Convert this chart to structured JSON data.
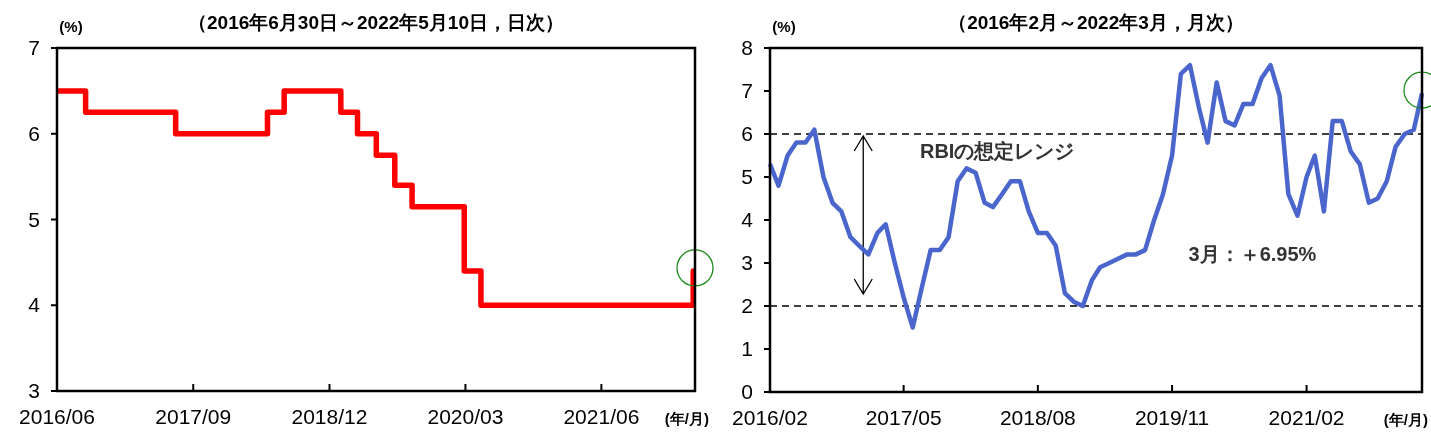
{
  "chart_data": [
    {
      "type": "step",
      "title": "（2016年6月30日～2022年5月10日，日次）",
      "ylabel": "(%)",
      "xlabel": "(年/月)",
      "xlim": [
        "2016-06-30",
        "2022-05-10"
      ],
      "ylim": [
        3,
        7
      ],
      "yticks": [
        3,
        4,
        5,
        6,
        7
      ],
      "xticks": [
        {
          "value": "2016-06-30",
          "label": "2016/06"
        },
        {
          "value": "2017-09-30",
          "label": "2017/09"
        },
        {
          "value": "2018-12-31",
          "label": "2018/12"
        },
        {
          "value": "2020-03-31",
          "label": "2020/03"
        },
        {
          "value": "2021-06-30",
          "label": "2021/06"
        }
      ],
      "grid": false,
      "series": [
        {
          "color": "#ff0000",
          "x": [
            "2016-06-30",
            "2016-10-04",
            "2017-08-02",
            "2018-06-06",
            "2018-08-01",
            "2019-02-07",
            "2019-04-04",
            "2019-06-06",
            "2019-08-07",
            "2019-10-04",
            "2020-03-27",
            "2020-05-22",
            "2022-05-04",
            "2022-05-10"
          ],
          "values": [
            6.5,
            6.25,
            6.0,
            6.25,
            6.5,
            6.25,
            6.0,
            5.75,
            5.4,
            5.15,
            4.4,
            4.0,
            4.4,
            4.4
          ]
        }
      ]
    },
    {
      "type": "line",
      "title": "（2016年2月～2022年3月，月次）",
      "ylabel": "(%)",
      "xlabel": "(年/月)",
      "xlim": [
        "2016-02",
        "2022-03"
      ],
      "ylim": [
        0,
        8
      ],
      "yticks": [
        0,
        1,
        2,
        3,
        4,
        5,
        6,
        7,
        8
      ],
      "xticks": [
        {
          "value": "2016-02",
          "label": "2016/02"
        },
        {
          "value": "2017-05",
          "label": "2017/05"
        },
        {
          "value": "2018-08",
          "label": "2018/08"
        },
        {
          "value": "2019-11",
          "label": "2019/11"
        },
        {
          "value": "2021-02",
          "label": "2021/02"
        }
      ],
      "grid": false,
      "line_style": "solid",
      "ref_lines": [
        {
          "axis": "y",
          "value": 6,
          "line_style": "dashed",
          "color": "#000000"
        },
        {
          "axis": "y",
          "value": 2,
          "line_style": "dashed",
          "color": "#000000"
        }
      ],
      "annotations": [
        "RBIの想定レンジ",
        "3月：＋6.95%"
      ],
      "series": [
        {
          "color": "#4a66cc",
          "x": [
            "2016-02",
            "2016-03",
            "2016-04",
            "2016-05",
            "2016-06",
            "2016-07",
            "2016-08",
            "2016-09",
            "2016-10",
            "2016-11",
            "2016-12",
            "2017-01",
            "2017-02",
            "2017-03",
            "2017-04",
            "2017-05",
            "2017-06",
            "2017-07",
            "2017-08",
            "2017-09",
            "2017-10",
            "2017-11",
            "2017-12",
            "2018-01",
            "2018-02",
            "2018-03",
            "2018-04",
            "2018-05",
            "2018-06",
            "2018-07",
            "2018-08",
            "2018-09",
            "2018-10",
            "2018-11",
            "2018-12",
            "2019-01",
            "2019-02",
            "2019-03",
            "2019-04",
            "2019-05",
            "2019-06",
            "2019-07",
            "2019-08",
            "2019-09",
            "2019-10",
            "2019-11",
            "2019-12",
            "2020-01",
            "2020-02",
            "2020-03",
            "2020-04",
            "2020-05",
            "2020-06",
            "2020-07",
            "2020-08",
            "2020-09",
            "2020-10",
            "2020-11",
            "2020-12",
            "2021-01",
            "2021-02",
            "2021-03",
            "2021-04",
            "2021-05",
            "2021-06",
            "2021-07",
            "2021-08",
            "2021-09",
            "2021-10",
            "2021-11",
            "2021-12",
            "2022-01",
            "2022-02",
            "2022-03"
          ],
          "values": [
            5.3,
            4.8,
            5.5,
            5.8,
            5.8,
            6.1,
            5.0,
            4.4,
            4.2,
            3.6,
            3.4,
            3.2,
            3.7,
            3.9,
            3.0,
            2.2,
            1.5,
            2.4,
            3.3,
            3.3,
            3.6,
            4.9,
            5.2,
            5.1,
            4.4,
            4.3,
            4.6,
            4.9,
            4.9,
            4.2,
            3.7,
            3.7,
            3.4,
            2.3,
            2.1,
            2.0,
            2.6,
            2.9,
            3.0,
            3.1,
            3.2,
            3.2,
            3.3,
            4.0,
            4.6,
            5.5,
            7.4,
            7.6,
            6.6,
            5.8,
            7.2,
            6.3,
            6.2,
            6.7,
            6.7,
            7.3,
            7.6,
            6.9,
            4.6,
            4.1,
            5.0,
            5.5,
            4.2,
            6.3,
            6.3,
            5.6,
            5.3,
            4.4,
            4.5,
            4.9,
            5.7,
            6.0,
            6.1,
            6.95
          ]
        }
      ]
    }
  ]
}
